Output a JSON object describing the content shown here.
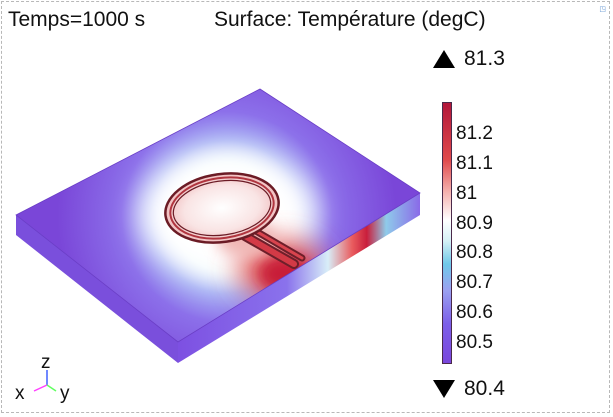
{
  "header": {
    "time_label": "Temps=1000 s",
    "surface_label": "Surface: Température (degC)"
  },
  "colorbar": {
    "max_label": "81.3",
    "min_label": "80.4",
    "ticks": [
      "81.2",
      "81.1",
      "81",
      "80.9",
      "80.8",
      "80.7",
      "80.6",
      "80.5"
    ],
    "colors": {
      "hot": "#b2163a",
      "mid": "#ffffff",
      "cool_cyan": "#6fc8e9",
      "cold": "#7a47dc"
    }
  },
  "axes": {
    "x_label": "x",
    "y_label": "y",
    "z_label": "z",
    "x_color": "#ff40ff",
    "y_color": "#60ff60",
    "z_color": "#4060ff"
  },
  "toolbar": {
    "corner_icon": "window-restore-icon"
  }
}
